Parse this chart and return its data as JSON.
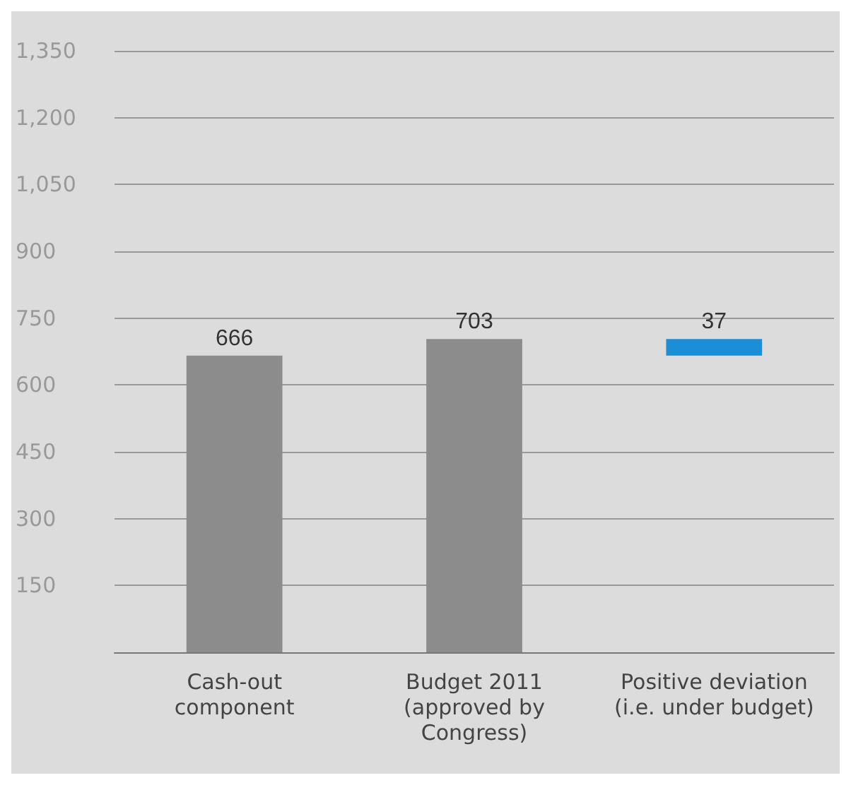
{
  "chart_data": {
    "type": "bar",
    "categories": [
      "Cash-out\ncomponent",
      "Budget 2011\n(approved by\nCongress)",
      "Positive deviation\n(i.e. under budget)"
    ],
    "values": [
      666,
      703,
      37
    ],
    "base": [
      0,
      0,
      666
    ],
    "colors": [
      "#8c8c8c",
      "#8c8c8c",
      "#1a8fd8"
    ],
    "data_labels": true,
    "ylim": [
      0,
      1350
    ],
    "yticks": [
      {
        "value": 0,
        "label": null
      },
      150,
      300,
      450,
      600,
      750,
      900,
      {
        "value": 1050,
        "label": "1,050"
      },
      {
        "value": 1200,
        "label": "1,200"
      },
      {
        "value": 1350,
        "label": "1,350"
      }
    ],
    "grid": "y"
  }
}
